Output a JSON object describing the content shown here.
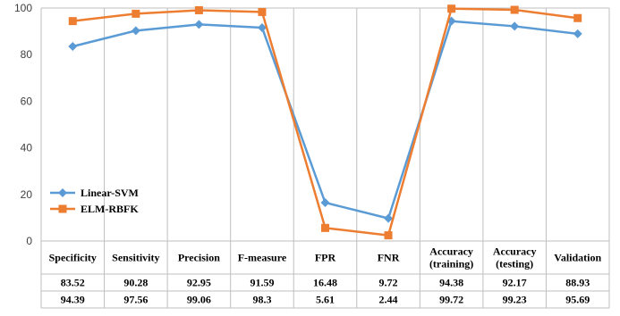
{
  "chart_data": {
    "type": "line",
    "categories": [
      [
        "Specificity"
      ],
      [
        "Sensitivity"
      ],
      [
        "Precision"
      ],
      [
        "F-measure"
      ],
      [
        "FPR"
      ],
      [
        "FNR"
      ],
      [
        "Accuracy",
        "(training)"
      ],
      [
        "Accuracy",
        "(testing)"
      ],
      [
        "Validation"
      ]
    ],
    "series": [
      {
        "name": "Linear-SVM",
        "color": "#5B9BD5",
        "marker": "diamond",
        "values": [
          83.52,
          90.28,
          92.95,
          91.59,
          16.48,
          9.72,
          94.38,
          92.17,
          88.93
        ],
        "labels": [
          "83.52",
          "90.28",
          "92.95",
          "91.59",
          "16.48",
          "9.72",
          "94.38",
          "92.17",
          "88.93"
        ]
      },
      {
        "name": "ELM-RBFK",
        "color": "#ED7D31",
        "marker": "square",
        "values": [
          94.39,
          97.56,
          99.06,
          98.3,
          5.61,
          2.44,
          99.72,
          99.23,
          95.69
        ],
        "labels": [
          "94.39",
          "97.56",
          "99.06",
          "98.3",
          "5.61",
          "2.44",
          "99.72",
          "99.23",
          "95.69"
        ]
      }
    ],
    "ylim": [
      0,
      100
    ],
    "yticks": [
      "0",
      "20",
      "40",
      "60",
      "80",
      "100"
    ],
    "grid": "vertical",
    "legend_position": "bottom-left",
    "data_table": true
  }
}
